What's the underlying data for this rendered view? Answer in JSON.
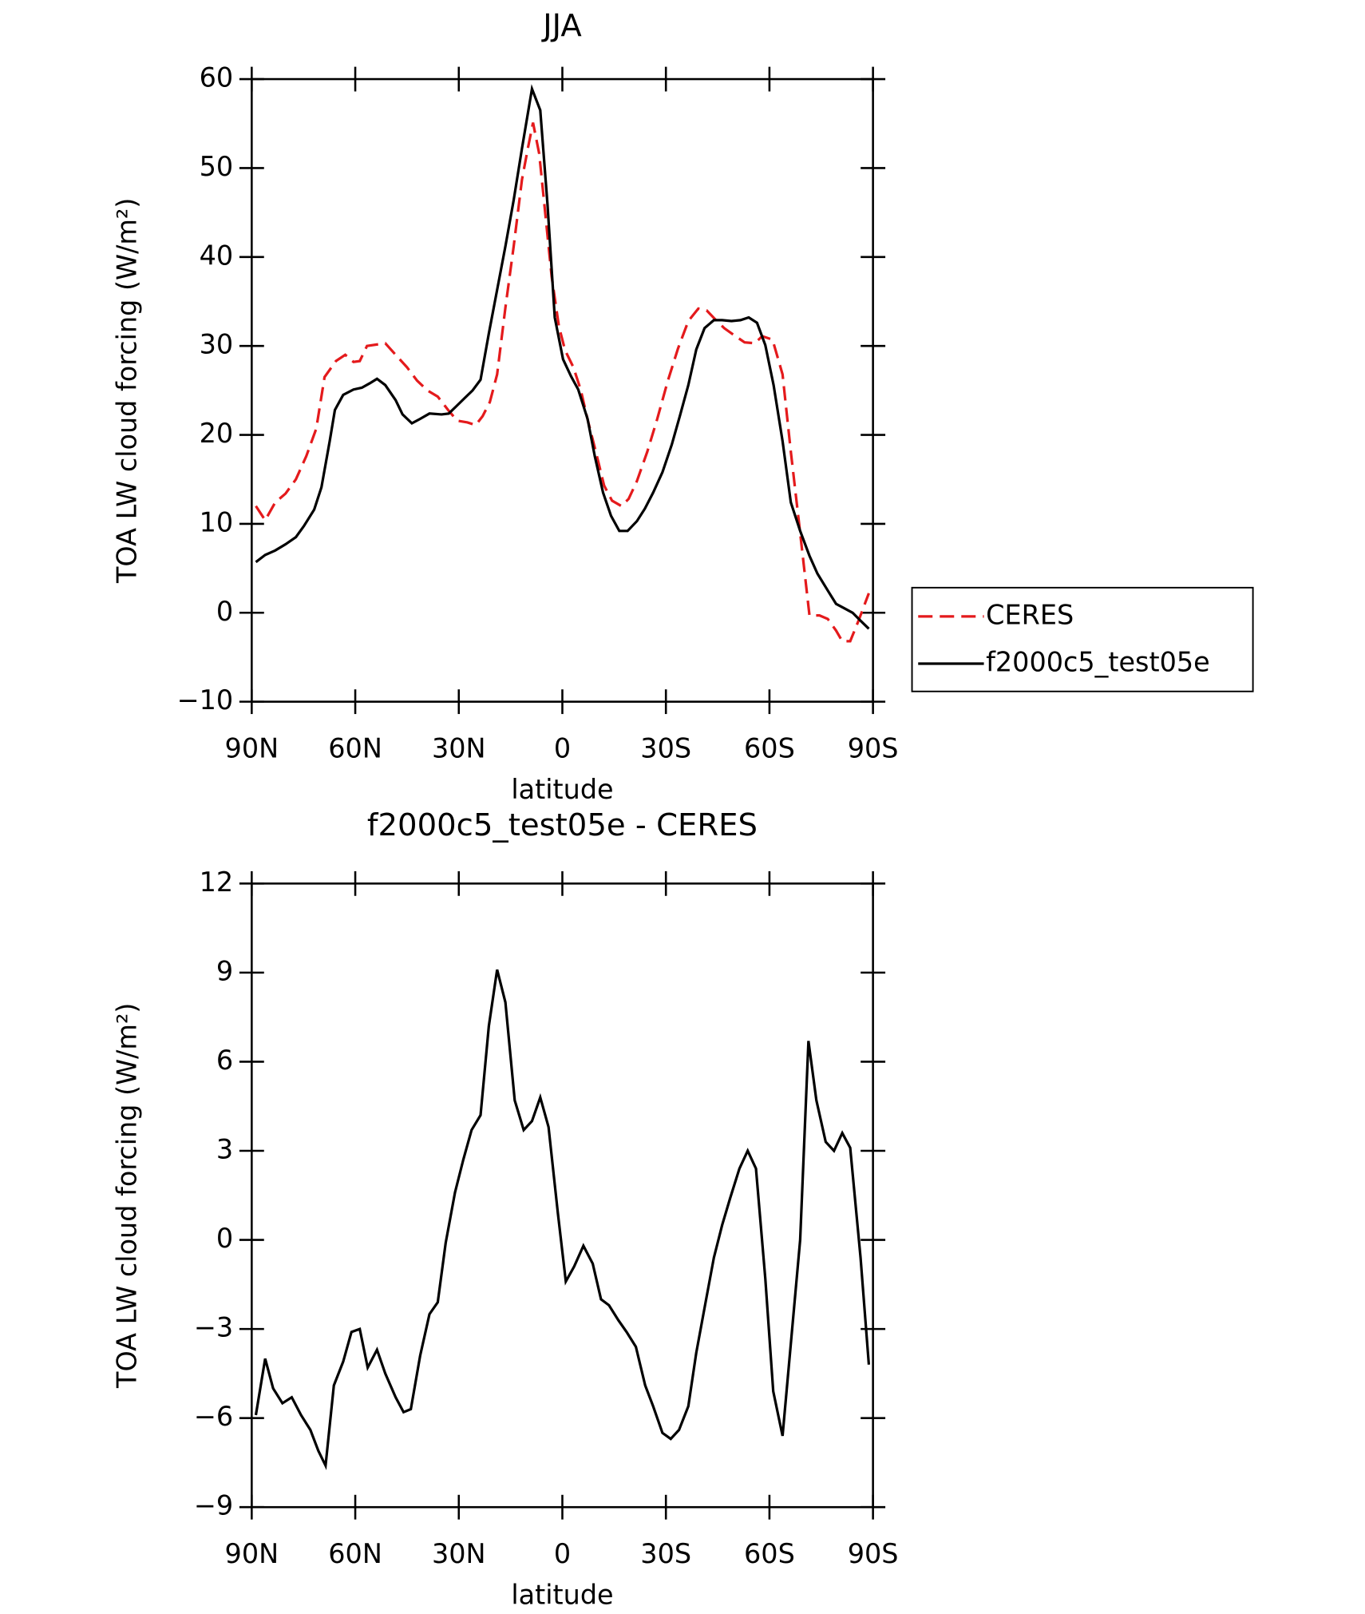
{
  "chart_data": [
    {
      "type": "line",
      "title": "JJA",
      "xlabel": "latitude",
      "ylabel": "TOA LW cloud forcing (W/m²)",
      "xlim": [
        90,
        -90
      ],
      "xticks": [
        {
          "value": 90,
          "label": "90N"
        },
        {
          "value": 60,
          "label": "60N"
        },
        {
          "value": 30,
          "label": "30N"
        },
        0,
        {
          "value": -30,
          "label": "30S"
        },
        {
          "value": -60,
          "label": "60S"
        },
        {
          "value": -90,
          "label": "90S"
        }
      ],
      "ylim": [
        -10,
        60
      ],
      "yticks": [
        {
          "value": -10,
          "label": "−10"
        },
        0,
        10,
        20,
        30,
        40,
        50,
        60
      ],
      "legend": "right",
      "series": [
        {
          "name": "CERES",
          "color": "#e41a1c",
          "dash": true,
          "x": [
            88.8,
            86.1,
            83.2,
            80.2,
            77.2,
            74.2,
            71.3,
            68.9,
            65.6,
            62.9,
            60.5,
            58.7,
            56.6,
            51.3,
            48.3,
            45.0,
            42.1,
            39.1,
            36.1,
            33.1,
            30.5,
            27.5,
            25.1,
            23.1,
            21.0,
            18.9,
            16.5,
            14.1,
            11.7,
            10.0,
            8.5,
            6.7,
            4.9,
            3.1,
            1.0,
            -0.8,
            -3.2,
            -5.3,
            -7.4,
            -9.7,
            -12.1,
            -14.4,
            -17.1,
            -19.2,
            -21.6,
            -24.6,
            -27.5,
            -30.5,
            -33.5,
            -36.5,
            -39.4,
            -41.8,
            -44.5,
            -46.9,
            -49.8,
            -52.8,
            -55.8,
            -57.9,
            -60.9,
            -63.8,
            -66.2,
            -68.6,
            -71.6,
            -74.5,
            -76.9,
            -79.3,
            -81.1,
            -83.4,
            -85.8,
            -88.8
          ],
          "values": [
            12.0,
            10.4,
            12.4,
            13.4,
            15.0,
            17.6,
            20.7,
            26.5,
            28.3,
            29.0,
            28.2,
            28.3,
            30.0,
            30.3,
            29.0,
            27.6,
            26.1,
            25.0,
            24.3,
            22.8,
            21.6,
            21.4,
            21.1,
            22.1,
            23.7,
            26.8,
            34.3,
            41.2,
            48.7,
            52.2,
            55.1,
            51.6,
            44.7,
            37.8,
            32.2,
            29.5,
            27.6,
            25.1,
            21.6,
            18.1,
            14.3,
            12.6,
            12.0,
            12.8,
            14.8,
            18.1,
            21.8,
            26.0,
            29.7,
            32.8,
            34.2,
            34.0,
            32.9,
            32.0,
            31.2,
            30.4,
            30.3,
            31.1,
            30.7,
            26.8,
            18.1,
            10.0,
            -0.3,
            -0.3,
            -0.7,
            -2.0,
            -3.2,
            -3.2,
            -0.9,
            2.2
          ]
        },
        {
          "name": "f2000c5_test05e",
          "color": "#000000",
          "dash": false,
          "x": [
            88.8,
            86.1,
            83.2,
            80.2,
            77.2,
            74.8,
            71.9,
            69.8,
            67.4,
            65.9,
            63.5,
            60.5,
            58.1,
            55.8,
            53.7,
            51.3,
            48.3,
            46.3,
            43.6,
            41.2,
            38.5,
            35.0,
            32.9,
            30.5,
            28.4,
            26.0,
            23.7,
            21.3,
            18.9,
            16.5,
            14.1,
            11.7,
            8.8,
            6.4,
            4.3,
            2.2,
            -0.2,
            -2.5,
            -4.6,
            -7.3,
            -9.4,
            -11.8,
            -14.1,
            -16.5,
            -18.9,
            -21.6,
            -23.9,
            -26.3,
            -29.0,
            -31.7,
            -34.1,
            -36.5,
            -38.8,
            -41.2,
            -43.9,
            -46.3,
            -49.0,
            -51.6,
            -54.0,
            -56.4,
            -58.8,
            -61.2,
            -63.8,
            -66.2,
            -68.9,
            -71.6,
            -73.9,
            -76.9,
            -79.3,
            -81.7,
            -84.1,
            -86.4,
            -88.8
          ],
          "values": [
            5.7,
            6.5,
            7.0,
            7.7,
            8.5,
            9.8,
            11.6,
            14.1,
            19.3,
            22.8,
            24.5,
            25.1,
            25.3,
            25.8,
            26.3,
            25.6,
            23.9,
            22.3,
            21.3,
            21.8,
            22.4,
            22.3,
            22.4,
            23.3,
            24.1,
            25.0,
            26.2,
            31.4,
            36.3,
            41.2,
            46.4,
            52.2,
            58.9,
            56.5,
            45.9,
            33.2,
            28.5,
            26.6,
            25.1,
            21.8,
            17.6,
            13.5,
            10.9,
            9.2,
            9.2,
            10.3,
            11.7,
            13.5,
            15.8,
            18.9,
            22.2,
            25.6,
            29.6,
            32.0,
            32.9,
            32.9,
            32.8,
            32.9,
            33.2,
            32.6,
            30.1,
            25.6,
            19.3,
            12.4,
            9.2,
            6.4,
            4.4,
            2.5,
            1.0,
            0.5,
            0.0,
            -0.9,
            -1.8
          ]
        }
      ]
    },
    {
      "type": "line",
      "title": "f2000c5_test05e - CERES",
      "xlabel": "latitude",
      "ylabel": "TOA LW cloud forcing (W/m²)",
      "xlim": [
        90,
        -90
      ],
      "xticks": [
        {
          "value": 90,
          "label": "90N"
        },
        {
          "value": 60,
          "label": "60N"
        },
        {
          "value": 30,
          "label": "30N"
        },
        0,
        {
          "value": -30,
          "label": "30S"
        },
        {
          "value": -60,
          "label": "60S"
        },
        {
          "value": -90,
          "label": "90S"
        }
      ],
      "ylim": [
        -9,
        12
      ],
      "yticks": [
        {
          "value": -9,
          "label": "−9"
        },
        {
          "value": -6,
          "label": "−6"
        },
        {
          "value": -3,
          "label": "−3"
        },
        0,
        3,
        6,
        9,
        12
      ],
      "series": [
        {
          "color": "#000000",
          "dash": false,
          "x": [
            88.8,
            86.1,
            83.8,
            81.1,
            78.4,
            75.7,
            73.0,
            70.7,
            68.6,
            66.2,
            63.5,
            61.1,
            58.7,
            56.4,
            53.7,
            51.3,
            48.3,
            46.0,
            43.9,
            41.2,
            38.5,
            36.1,
            33.8,
            31.1,
            28.7,
            26.3,
            23.7,
            21.3,
            18.9,
            16.5,
            13.8,
            11.2,
            8.8,
            6.4,
            4.0,
            1.3,
            -1.0,
            -3.4,
            -6.1,
            -8.8,
            -11.2,
            -13.5,
            -16.2,
            -18.6,
            -21.3,
            -24.0,
            -26.3,
            -29.0,
            -31.4,
            -33.8,
            -36.5,
            -38.8,
            -41.5,
            -43.9,
            -46.3,
            -48.6,
            -51.3,
            -53.7,
            -56.1,
            -58.8,
            -61.1,
            -63.8,
            -68.9,
            -71.3,
            -73.6,
            -76.3,
            -78.7,
            -81.1,
            -83.4,
            -86.4,
            -88.8
          ],
          "values": [
            -5.9,
            -4.0,
            -5.0,
            -5.5,
            -5.3,
            -5.9,
            -6.4,
            -7.1,
            -7.6,
            -4.9,
            -4.1,
            -3.1,
            -3.0,
            -4.3,
            -3.7,
            -4.5,
            -5.3,
            -5.8,
            -5.7,
            -3.9,
            -2.5,
            -2.1,
            -0.1,
            1.6,
            2.7,
            3.7,
            4.2,
            7.2,
            9.1,
            8.0,
            4.7,
            3.7,
            4.0,
            4.8,
            3.8,
            0.9,
            -1.4,
            -0.9,
            -0.2,
            -0.8,
            -2.0,
            -2.2,
            -2.7,
            -3.1,
            -3.6,
            -4.9,
            -5.6,
            -6.5,
            -6.7,
            -6.4,
            -5.6,
            -3.8,
            -2.1,
            -0.6,
            0.5,
            1.4,
            2.4,
            3.0,
            2.4,
            -1.3,
            -5.1,
            -6.6,
            0.0,
            6.7,
            4.7,
            3.3,
            3.0,
            3.6,
            3.1,
            -0.6,
            -4.2
          ]
        }
      ]
    }
  ]
}
